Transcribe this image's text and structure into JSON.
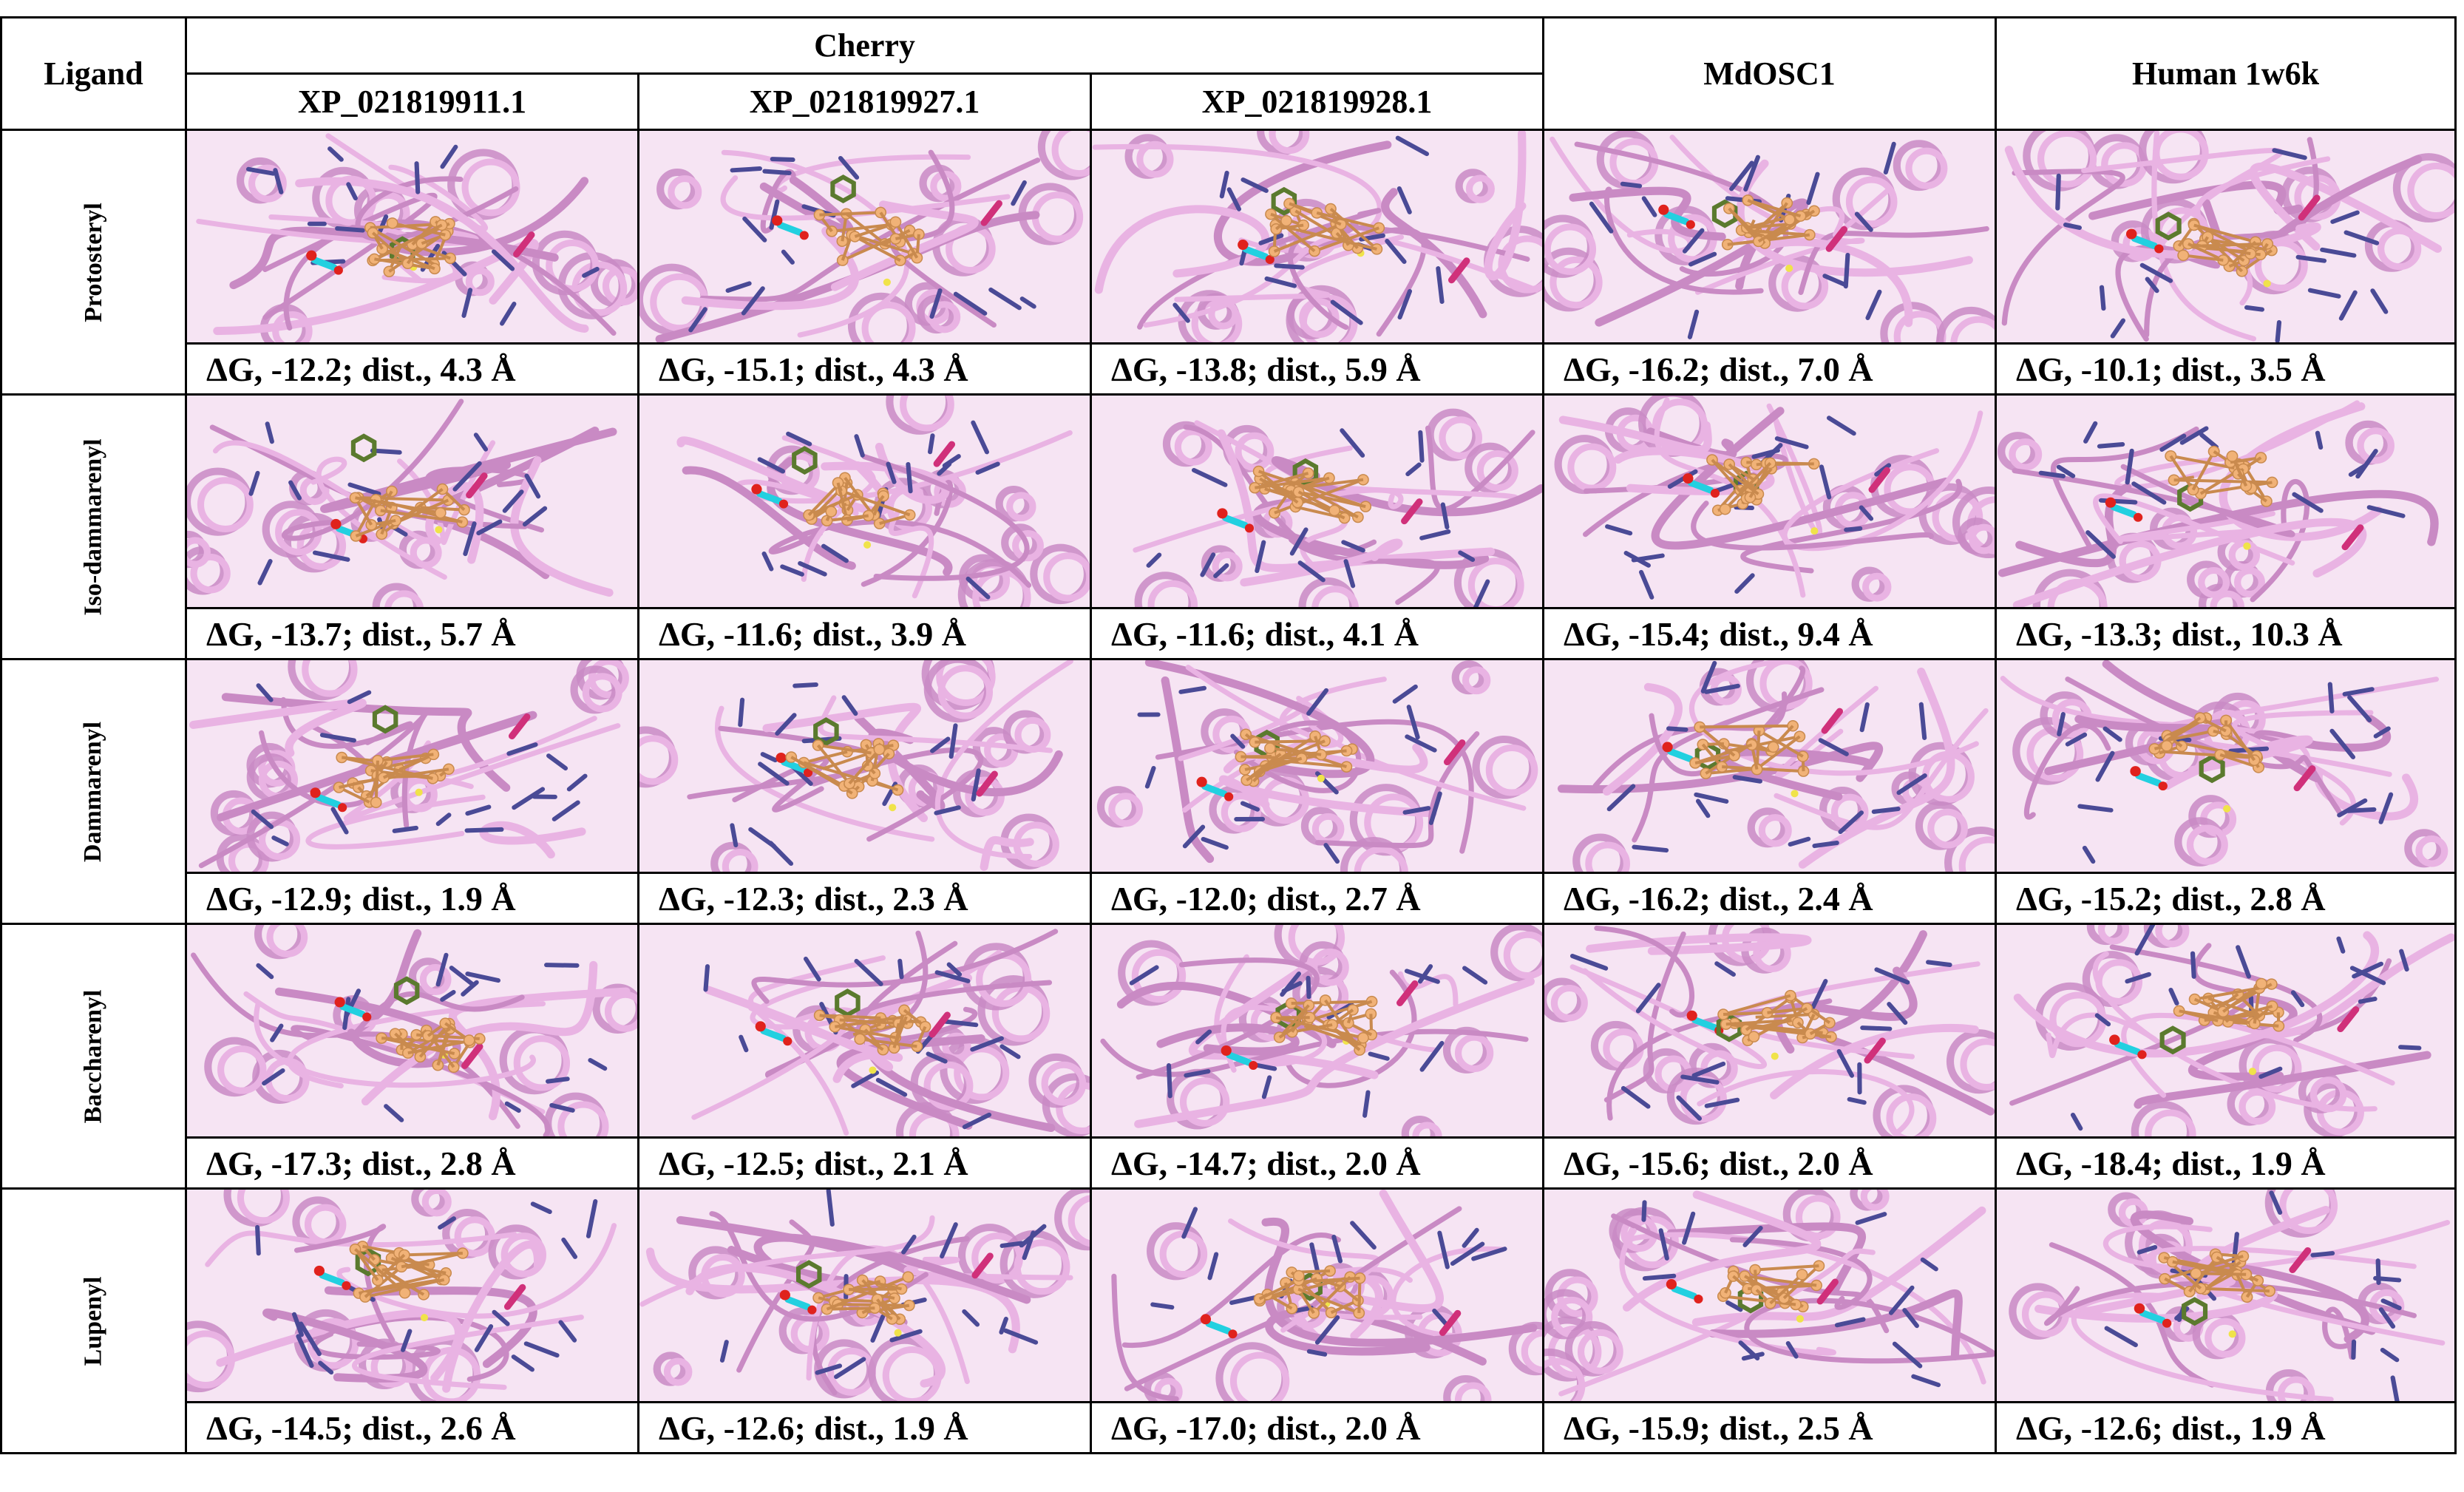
{
  "header": {
    "ligand_label": "Ligand",
    "group_label": "Cherry",
    "columns": [
      "XP_021819911.1",
      "XP_021819927.1",
      "XP_021819928.1",
      "MdOSC1",
      "Human 1w6k"
    ]
  },
  "colors": {
    "ribbon": "#e9b3e3",
    "ribbon_dark": "#c98ac4",
    "residue": "#4a4a96",
    "ligand_ball": "#f1b277",
    "cyan_residue": "#22d0e0",
    "magenta_residue": "#d0307a",
    "olive_residue": "#5b7a2e",
    "oxygen": "#e0221d",
    "sulfur": "#f0e34a"
  },
  "rows": [
    {
      "ligand": "Protosteryl",
      "cells": [
        "ΔG, -12.2; dist., 4.3 Å",
        "ΔG, -15.1; dist., 4.3 Å",
        "ΔG, -13.8; dist., 5.9 Å",
        "ΔG, -16.2; dist., 7.0 Å",
        "ΔG, -10.1; dist., 3.5 Å"
      ]
    },
    {
      "ligand": "Iso-dammarenyl",
      "cells": [
        "ΔG, -13.7; dist., 5.7 Å",
        "ΔG, -11.6; dist., 3.9 Å",
        "ΔG, -11.6; dist., 4.1 Å",
        "ΔG, -15.4; dist., 9.4 Å",
        "ΔG, -13.3; dist., 10.3 Å"
      ]
    },
    {
      "ligand": "Dammarenyl",
      "cells": [
        "ΔG, -12.9; dist., 1.9 Å",
        "ΔG, -12.3; dist., 2.3 Å",
        "ΔG, -12.0; dist., 2.7 Å",
        "ΔG, -16.2; dist., 2.4 Å",
        "ΔG, -15.2; dist., 2.8 Å"
      ]
    },
    {
      "ligand": "Baccharenyl",
      "cells": [
        "ΔG, -17.3; dist., 2.8 Å",
        "ΔG, -12.5; dist., 2.1 Å",
        "ΔG, -14.7; dist., 2.0 Å",
        "ΔG, -15.6; dist., 2.0 Å",
        "ΔG, -18.4; dist., 1.9 Å"
      ]
    },
    {
      "ligand": "Lupenyl",
      "cells": [
        "ΔG, -14.5; dist., 2.6 Å",
        "ΔG, -12.6; dist., 1.9 Å",
        "ΔG, -17.0; dist., 2.0 Å",
        "ΔG, -15.9; dist., 2.5 Å",
        "ΔG, -12.6; dist., 1.9 Å"
      ]
    }
  ]
}
